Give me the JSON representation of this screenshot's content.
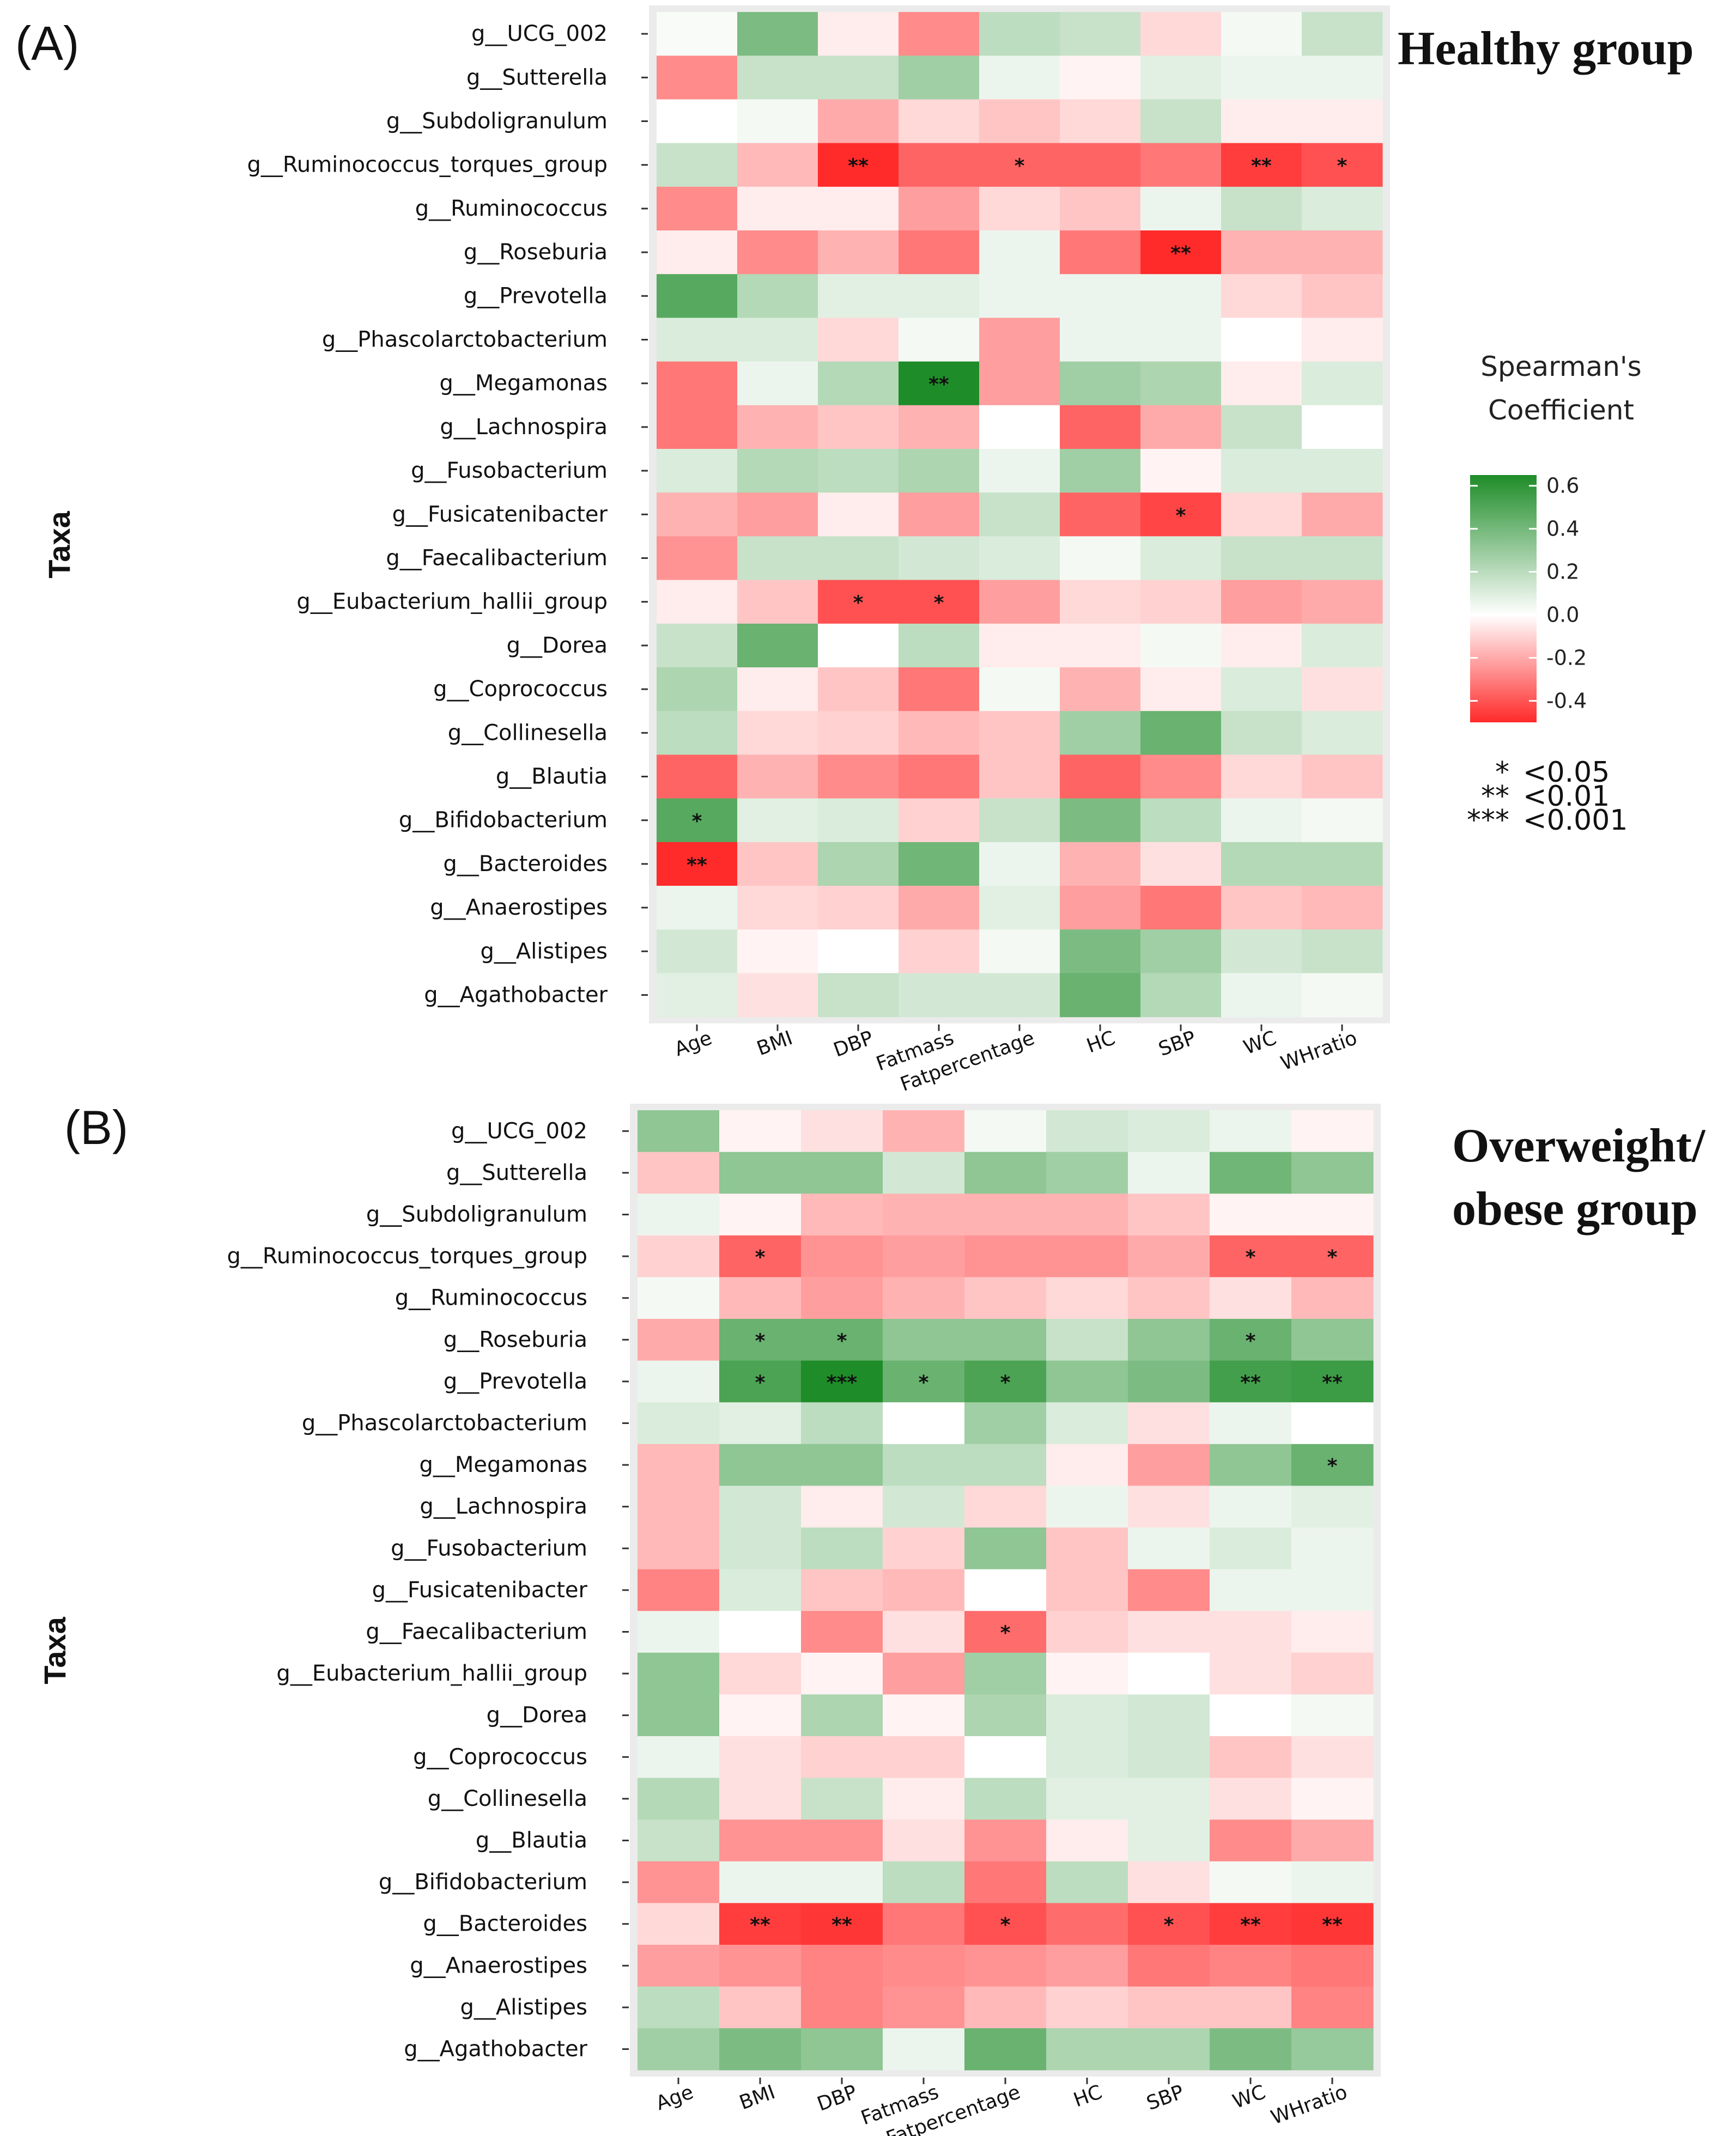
{
  "colors": {
    "high": "#1e8c28",
    "zero": "#ffffff",
    "low": "#ff2a2a",
    "panel_bg": "#ebebeb"
  },
  "legend": {
    "title_line1": "Spearman's",
    "title_line2": "Coefficient",
    "ticks": [
      "0.6",
      "0.4",
      "0.2",
      "0.0",
      "-0.2",
      "-0.4"
    ],
    "tick_values": [
      0.6,
      0.4,
      0.2,
      0.0,
      -0.2,
      -0.4
    ],
    "range": [
      -0.5,
      0.65
    ],
    "significance": [
      {
        "stars": "*",
        "label": "<0.05"
      },
      {
        "stars": "**",
        "label": "<0.01"
      },
      {
        "stars": "***",
        "label": "<0.001"
      }
    ]
  },
  "chart_data": [
    {
      "type": "heatmap",
      "panel": "(A)",
      "title": "Healthy group",
      "ylabel": "Taxa",
      "xlabel": "",
      "x": [
        "Age",
        "BMI",
        "DBP",
        "Fatmass",
        "Fatpercentage",
        "HC",
        "SBP",
        "WC",
        "WHratio"
      ],
      "y": [
        "g__UCG_002",
        "g__Sutterella",
        "g__Subdoligranulum",
        "g__Ruminococcus_torques_group",
        "g__Ruminococcus",
        "g__Roseburia",
        "g__Prevotella",
        "g__Phascolarctobacterium",
        "g__Megamonas",
        "g__Lachnospira",
        "g__Fusobacterium",
        "g__Fusicatenibacter",
        "g__Faecalibacterium",
        "g__Eubacterium_hallii_group",
        "g__Dorea",
        "g__Coprococcus",
        "g__Collinesella",
        "g__Blautia",
        "g__Bifidobacterium",
        "g__Bacteroides",
        "g__Anaerostipes",
        "g__Alistipes",
        "g__Agathobacter"
      ],
      "values": [
        [
          0.02,
          0.35,
          -0.05,
          -0.3,
          0.18,
          0.15,
          -0.1,
          0.03,
          0.15
        ],
        [
          -0.3,
          0.15,
          0.15,
          0.25,
          0.05,
          -0.03,
          0.08,
          0.05,
          0.05
        ],
        [
          0.0,
          0.03,
          -0.22,
          -0.1,
          -0.15,
          -0.1,
          0.15,
          -0.05,
          -0.05
        ],
        [
          0.15,
          -0.18,
          -0.55,
          -0.4,
          -0.4,
          -0.4,
          -0.35,
          -0.5,
          -0.45
        ],
        [
          -0.3,
          -0.05,
          -0.05,
          -0.25,
          -0.1,
          -0.15,
          0.05,
          0.15,
          0.1
        ],
        [
          -0.05,
          -0.3,
          -0.2,
          -0.35,
          0.05,
          -0.35,
          -0.55,
          -0.2,
          -0.2
        ],
        [
          0.45,
          0.2,
          0.08,
          0.08,
          0.05,
          0.05,
          0.05,
          -0.1,
          -0.15
        ],
        [
          0.1,
          0.1,
          -0.1,
          0.03,
          -0.25,
          0.05,
          0.05,
          0.0,
          -0.05
        ],
        [
          -0.35,
          0.05,
          0.2,
          0.6,
          -0.25,
          0.25,
          0.22,
          -0.05,
          0.1
        ],
        [
          -0.35,
          -0.2,
          -0.15,
          -0.2,
          0.0,
          -0.4,
          -0.22,
          0.15,
          0.0
        ],
        [
          0.1,
          0.2,
          0.18,
          0.22,
          0.05,
          0.25,
          -0.03,
          0.1,
          0.1
        ],
        [
          -0.2,
          -0.25,
          -0.05,
          -0.25,
          0.15,
          -0.4,
          -0.48,
          -0.1,
          -0.22
        ],
        [
          -0.28,
          0.15,
          0.15,
          0.12,
          0.1,
          0.03,
          0.1,
          0.15,
          0.15
        ],
        [
          -0.05,
          -0.15,
          -0.45,
          -0.45,
          -0.25,
          -0.1,
          -0.12,
          -0.25,
          -0.22
        ],
        [
          0.15,
          0.4,
          0.0,
          0.18,
          -0.05,
          -0.05,
          0.03,
          -0.05,
          0.1
        ],
        [
          0.22,
          -0.05,
          -0.15,
          -0.35,
          0.03,
          -0.2,
          -0.05,
          0.1,
          -0.08
        ],
        [
          0.18,
          -0.1,
          -0.12,
          -0.18,
          -0.15,
          0.25,
          0.4,
          0.15,
          0.1
        ],
        [
          -0.4,
          -0.2,
          -0.3,
          -0.35,
          -0.15,
          -0.4,
          -0.3,
          -0.1,
          -0.15
        ],
        [
          0.45,
          0.08,
          0.1,
          -0.12,
          0.15,
          0.35,
          0.18,
          0.05,
          0.03
        ],
        [
          -0.55,
          -0.15,
          0.22,
          0.38,
          0.05,
          -0.2,
          -0.08,
          0.2,
          0.2
        ],
        [
          0.05,
          -0.1,
          -0.12,
          -0.22,
          0.08,
          -0.25,
          -0.35,
          -0.15,
          -0.18
        ],
        [
          0.12,
          -0.03,
          0.0,
          -0.12,
          0.03,
          0.35,
          0.25,
          0.12,
          0.15
        ],
        [
          0.08,
          -0.08,
          0.15,
          0.12,
          0.12,
          0.4,
          0.2,
          0.05,
          0.03
        ]
      ],
      "significance": [
        [
          "",
          "",
          "",
          "",
          "",
          "",
          "",
          "",
          ""
        ],
        [
          "",
          "",
          "",
          "",
          "",
          "",
          "",
          "",
          ""
        ],
        [
          "",
          "",
          "",
          "",
          "",
          "",
          "",
          "",
          ""
        ],
        [
          "",
          "",
          "**",
          "",
          "*",
          "",
          "",
          "**",
          "*"
        ],
        [
          "",
          "",
          "",
          "",
          "",
          "",
          "",
          "",
          ""
        ],
        [
          "",
          "",
          "",
          "",
          "",
          "",
          "**",
          "",
          ""
        ],
        [
          "",
          "",
          "",
          "",
          "",
          "",
          "",
          "",
          ""
        ],
        [
          "",
          "",
          "",
          "",
          "",
          "",
          "",
          "",
          ""
        ],
        [
          "",
          "",
          "",
          "**",
          "",
          "",
          "",
          "",
          ""
        ],
        [
          "",
          "",
          "",
          "",
          "",
          "",
          "",
          "",
          ""
        ],
        [
          "",
          "",
          "",
          "",
          "",
          "",
          "",
          "",
          ""
        ],
        [
          "",
          "",
          "",
          "",
          "",
          "",
          "*",
          "",
          ""
        ],
        [
          "",
          "",
          "",
          "",
          "",
          "",
          "",
          "",
          ""
        ],
        [
          "",
          "",
          "*",
          "*",
          "",
          "",
          "",
          "",
          ""
        ],
        [
          "",
          "",
          "",
          "",
          "",
          "",
          "",
          "",
          ""
        ],
        [
          "",
          "",
          "",
          "",
          "",
          "",
          "",
          "",
          ""
        ],
        [
          "",
          "",
          "",
          "",
          "",
          "",
          "",
          "",
          ""
        ],
        [
          "",
          "",
          "",
          "",
          "",
          "",
          "",
          "",
          ""
        ],
        [
          "*",
          "",
          "",
          "",
          "",
          "",
          "",
          "",
          ""
        ],
        [
          "**",
          "",
          "",
          "",
          "",
          "",
          "",
          "",
          ""
        ],
        [
          "",
          "",
          "",
          "",
          "",
          "",
          "",
          "",
          ""
        ],
        [
          "",
          "",
          "",
          "",
          "",
          "",
          "",
          "",
          ""
        ],
        [
          "",
          "",
          "",
          "",
          "",
          "",
          "",
          "",
          ""
        ]
      ]
    },
    {
      "type": "heatmap",
      "panel": "(B)",
      "title": "Overweight/ obese group",
      "title_line1": "Overweight/",
      "title_line2": "obese group",
      "ylabel": "Taxa",
      "xlabel": "",
      "x": [
        "Age",
        "BMI",
        "DBP",
        "Fatmass",
        "Fatpercentage",
        "HC",
        "SBP",
        "WC",
        "WHratio"
      ],
      "y": [
        "g__UCG_002",
        "g__Sutterella",
        "g__Subdoligranulum",
        "g__Ruminococcus_torques_group",
        "g__Ruminococcus",
        "g__Roseburia",
        "g__Prevotella",
        "g__Phascolarctobacterium",
        "g__Megamonas",
        "g__Lachnospira",
        "g__Fusobacterium",
        "g__Fusicatenibacter",
        "g__Faecalibacterium",
        "g__Eubacterium_hallii_group",
        "g__Dorea",
        "g__Coprococcus",
        "g__Collinesella",
        "g__Blautia",
        "g__Bifidobacterium",
        "g__Bacteroides",
        "g__Anaerostipes",
        "g__Alistipes",
        "g__Agathobacter"
      ],
      "values": [
        [
          0.3,
          -0.03,
          -0.08,
          -0.2,
          0.03,
          0.12,
          0.1,
          0.05,
          -0.03
        ],
        [
          -0.15,
          0.3,
          0.3,
          0.12,
          0.3,
          0.25,
          0.05,
          0.38,
          0.3
        ],
        [
          0.05,
          -0.03,
          -0.18,
          -0.2,
          -0.2,
          -0.2,
          -0.15,
          -0.03,
          -0.03
        ],
        [
          -0.12,
          -0.4,
          -0.28,
          -0.25,
          -0.28,
          -0.28,
          -0.22,
          -0.4,
          -0.4
        ],
        [
          0.03,
          -0.18,
          -0.25,
          -0.2,
          -0.15,
          -0.1,
          -0.15,
          -0.08,
          -0.18
        ],
        [
          -0.22,
          0.4,
          0.4,
          0.3,
          0.3,
          0.15,
          0.3,
          0.4,
          0.3
        ],
        [
          0.05,
          0.48,
          0.6,
          0.4,
          0.48,
          0.3,
          0.35,
          0.5,
          0.52
        ],
        [
          0.1,
          0.08,
          0.18,
          0.0,
          0.25,
          0.1,
          -0.08,
          0.05,
          0.0
        ],
        [
          -0.18,
          0.3,
          0.3,
          0.18,
          0.18,
          -0.05,
          -0.25,
          0.3,
          0.4
        ],
        [
          -0.18,
          0.12,
          -0.05,
          0.12,
          -0.1,
          0.05,
          -0.08,
          0.05,
          0.08
        ],
        [
          -0.18,
          0.12,
          0.18,
          -0.12,
          0.3,
          -0.15,
          0.05,
          0.1,
          0.05
        ],
        [
          -0.32,
          0.1,
          -0.15,
          -0.18,
          0.0,
          -0.15,
          -0.3,
          0.05,
          0.05
        ],
        [
          0.05,
          0.0,
          -0.3,
          -0.08,
          -0.38,
          -0.12,
          -0.08,
          -0.08,
          -0.05
        ],
        [
          0.3,
          -0.1,
          -0.03,
          -0.25,
          0.25,
          -0.03,
          0.0,
          -0.08,
          -0.12
        ],
        [
          0.3,
          -0.03,
          0.22,
          -0.03,
          0.22,
          0.1,
          0.12,
          0.0,
          0.03
        ],
        [
          0.05,
          -0.08,
          -0.12,
          -0.12,
          0.0,
          0.1,
          0.12,
          -0.15,
          -0.08
        ],
        [
          0.2,
          -0.08,
          0.15,
          -0.05,
          0.18,
          0.08,
          0.08,
          -0.08,
          -0.03
        ],
        [
          0.15,
          -0.28,
          -0.28,
          -0.08,
          -0.28,
          -0.05,
          0.08,
          -0.3,
          -0.22
        ],
        [
          -0.28,
          0.05,
          0.05,
          0.18,
          -0.35,
          0.18,
          -0.08,
          0.03,
          0.05
        ],
        [
          -0.1,
          -0.5,
          -0.52,
          -0.35,
          -0.45,
          -0.38,
          -0.45,
          -0.5,
          -0.52
        ],
        [
          -0.25,
          -0.28,
          -0.32,
          -0.3,
          -0.28,
          -0.25,
          -0.35,
          -0.32,
          -0.35
        ],
        [
          0.18,
          -0.15,
          -0.32,
          -0.28,
          -0.18,
          -0.12,
          -0.15,
          -0.15,
          -0.32
        ],
        [
          0.25,
          0.35,
          0.3,
          0.05,
          0.4,
          0.22,
          0.22,
          0.35,
          0.28
        ]
      ],
      "significance": [
        [
          "",
          "",
          "",
          "",
          "",
          "",
          "",
          "",
          ""
        ],
        [
          "",
          "",
          "",
          "",
          "",
          "",
          "",
          "",
          ""
        ],
        [
          "",
          "",
          "",
          "",
          "",
          "",
          "",
          "",
          ""
        ],
        [
          "",
          "*",
          "",
          "",
          "",
          "",
          "",
          "*",
          "*"
        ],
        [
          "",
          "",
          "",
          "",
          "",
          "",
          "",
          "",
          ""
        ],
        [
          "",
          "*",
          "*",
          "",
          "",
          "",
          "",
          "*",
          ""
        ],
        [
          "",
          "*",
          "***",
          "*",
          "*",
          "",
          "",
          "**",
          "**"
        ],
        [
          "",
          "",
          "",
          "",
          "",
          "",
          "",
          "",
          ""
        ],
        [
          "",
          "",
          "",
          "",
          "",
          "",
          "",
          "",
          "*"
        ],
        [
          "",
          "",
          "",
          "",
          "",
          "",
          "",
          "",
          ""
        ],
        [
          "",
          "",
          "",
          "",
          "",
          "",
          "",
          "",
          ""
        ],
        [
          "",
          "",
          "",
          "",
          "",
          "",
          "",
          "",
          ""
        ],
        [
          "",
          "",
          "",
          "",
          "*",
          "",
          "",
          "",
          ""
        ],
        [
          "",
          "",
          "",
          "",
          "",
          "",
          "",
          "",
          ""
        ],
        [
          "",
          "",
          "",
          "",
          "",
          "",
          "",
          "",
          ""
        ],
        [
          "",
          "",
          "",
          "",
          "",
          "",
          "",
          "",
          ""
        ],
        [
          "",
          "",
          "",
          "",
          "",
          "",
          "",
          "",
          ""
        ],
        [
          "",
          "",
          "",
          "",
          "",
          "",
          "",
          "",
          ""
        ],
        [
          "",
          "",
          "",
          "",
          "",
          "",
          "",
          "",
          ""
        ],
        [
          "",
          "**",
          "**",
          "",
          "*",
          "",
          "*",
          "**",
          "**"
        ],
        [
          "",
          "",
          "",
          "",
          "",
          "",
          "",
          "",
          ""
        ],
        [
          "",
          "",
          "",
          "",
          "",
          "",
          "",
          "",
          ""
        ],
        [
          "",
          "",
          "",
          "",
          "",
          "",
          "",
          "",
          ""
        ]
      ]
    }
  ]
}
